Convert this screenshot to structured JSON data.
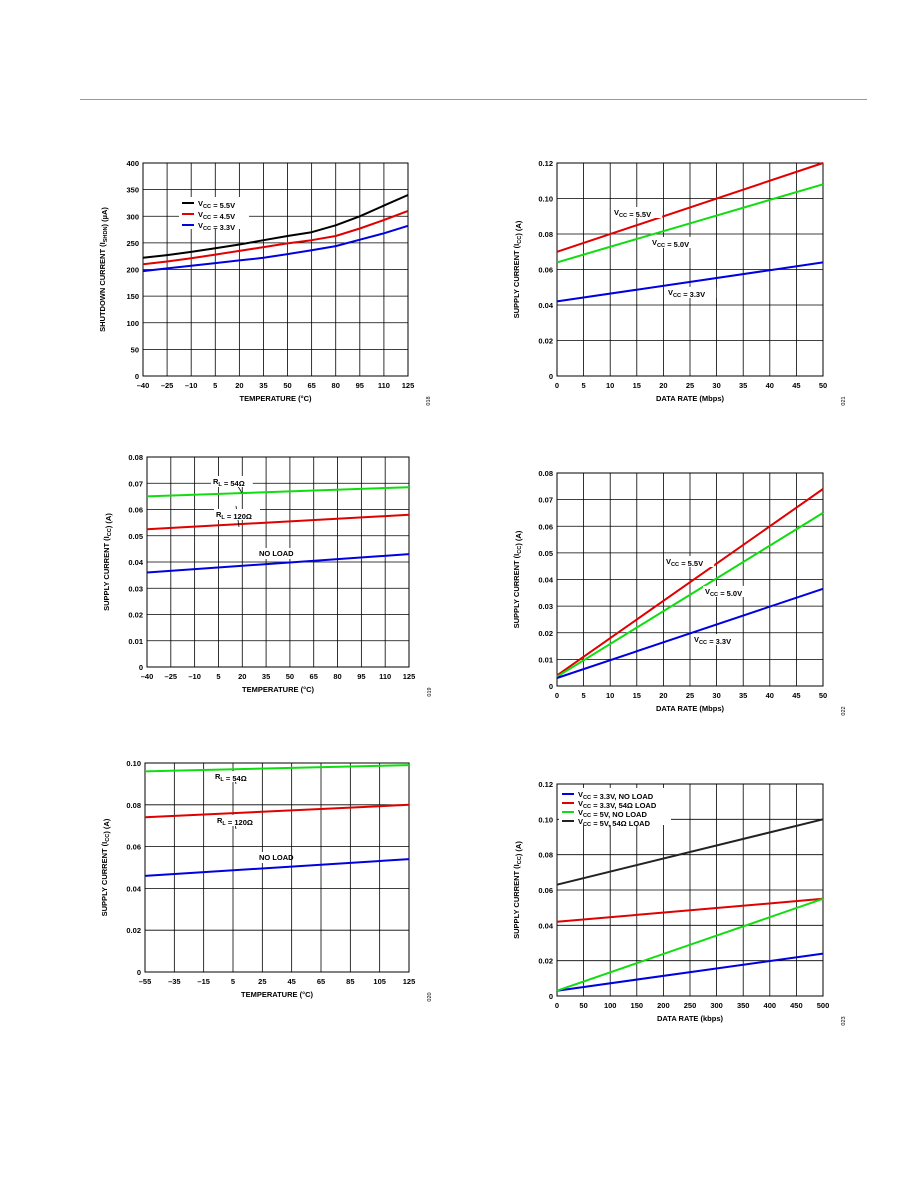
{
  "page": {
    "figure_codes": [
      "018",
      "021",
      "019",
      "022",
      "020",
      "023"
    ]
  },
  "chart_data": [
    {
      "type": "line",
      "xlabel": "TEMPERATURE (°C)",
      "ylabel": "SHUTDOWN CURRENT (I_SHDN) (µA)",
      "x": [
        -40,
        -25,
        -10,
        5,
        20,
        35,
        50,
        65,
        80,
        95,
        110,
        125
      ],
      "xticks": [
        "–40",
        "–25",
        "–10",
        "5",
        "20",
        "35",
        "50",
        "65",
        "80",
        "95",
        "110",
        "125"
      ],
      "yticks": [
        "0",
        "50",
        "100",
        "150",
        "200",
        "250",
        "300",
        "350",
        "400"
      ],
      "xlim": [
        -40,
        125
      ],
      "ylim": [
        0,
        400
      ],
      "legend": "top-left",
      "series": [
        {
          "name": "V_CC = 5.5V",
          "color": "#000000",
          "values": [
            222,
            227,
            233,
            240,
            247,
            255,
            263,
            270,
            283,
            300,
            320,
            340
          ]
        },
        {
          "name": "V_CC = 4.5V",
          "color": "#e00000",
          "values": [
            210,
            215,
            221,
            228,
            235,
            242,
            249,
            255,
            263,
            277,
            293,
            310
          ]
        },
        {
          "name": "V_CC = 3.3V",
          "color": "#0000e0",
          "values": [
            197,
            202,
            207,
            212,
            217,
            222,
            229,
            236,
            244,
            256,
            268,
            282
          ]
        }
      ]
    },
    {
      "type": "line",
      "xlabel": "DATA RATE (Mbps)",
      "ylabel": "SUPPLY CURRENT (I_CC) (A)",
      "x": [
        0,
        50
      ],
      "xticks": [
        "0",
        "5",
        "10",
        "15",
        "20",
        "25",
        "30",
        "35",
        "40",
        "45",
        "50"
      ],
      "yticks": [
        "0",
        "0.02",
        "0.04",
        "0.06",
        "0.08",
        "0.10",
        "0.12"
      ],
      "xlim": [
        0,
        50
      ],
      "ylim": [
        0,
        0.12
      ],
      "series": [
        {
          "name": "V_CC = 5.5V",
          "color": "#e00000",
          "values": [
            0.07,
            0.12
          ]
        },
        {
          "name": "V_CC = 5.0V",
          "color": "#10dd10",
          "values": [
            0.064,
            0.108
          ]
        },
        {
          "name": "V_CC = 3.3V",
          "color": "#0000e0",
          "values": [
            0.042,
            0.064
          ]
        }
      ]
    },
    {
      "type": "line",
      "xlabel": "TEMPERATURE (°C)",
      "ylabel": "SUPPLY CURRENT (I_CC) (A)",
      "x": [
        -40,
        125
      ],
      "xticks": [
        "–40",
        "–25",
        "–10",
        "5",
        "20",
        "35",
        "50",
        "65",
        "80",
        "95",
        "110",
        "125"
      ],
      "yticks": [
        "0",
        "0.01",
        "0.02",
        "0.03",
        "0.04",
        "0.05",
        "0.06",
        "0.07",
        "0.08"
      ],
      "xlim": [
        -40,
        125
      ],
      "ylim": [
        0,
        0.08
      ],
      "series": [
        {
          "name": "R_L = 54Ω",
          "color": "#10dd10",
          "values": [
            0.065,
            0.0685
          ]
        },
        {
          "name": "R_L = 120Ω",
          "color": "#e00000",
          "values": [
            0.0525,
            0.058
          ]
        },
        {
          "name": "NO LOAD",
          "color": "#0000e0",
          "values": [
            0.036,
            0.043
          ]
        }
      ]
    },
    {
      "type": "line",
      "xlabel": "DATA RATE (Mbps)",
      "ylabel": "SUPPLY CURRENT (I_CC) (A)",
      "x": [
        0,
        50
      ],
      "xticks": [
        "0",
        "5",
        "10",
        "15",
        "20",
        "25",
        "30",
        "35",
        "40",
        "45",
        "50"
      ],
      "yticks": [
        "0",
        "0.01",
        "0.02",
        "0.03",
        "0.04",
        "0.05",
        "0.06",
        "0.07",
        "0.08"
      ],
      "xlim": [
        0,
        50
      ],
      "ylim": [
        0,
        0.08
      ],
      "series": [
        {
          "name": "V_CC = 5.5V",
          "color": "#e00000",
          "values": [
            0.004,
            0.074
          ]
        },
        {
          "name": "V_CC = 5.0V",
          "color": "#10dd10",
          "values": [
            0.0035,
            0.065
          ]
        },
        {
          "name": "V_CC = 3.3V",
          "color": "#0000e0",
          "values": [
            0.003,
            0.0365
          ]
        }
      ]
    },
    {
      "type": "line",
      "xlabel": "TEMPERATURE (°C)",
      "ylabel": "SUPPLY CURRENT (I_CC) (A)",
      "x": [
        -55,
        125
      ],
      "xticks": [
        "–55",
        "–35",
        "–15",
        "5",
        "25",
        "45",
        "65",
        "85",
        "105",
        "125"
      ],
      "yticks": [
        "0",
        "0.02",
        "0.04",
        "0.06",
        "0.08",
        "0.10"
      ],
      "xlim": [
        -55,
        125
      ],
      "ylim": [
        0,
        0.1
      ],
      "series": [
        {
          "name": "R_L = 54Ω",
          "color": "#10dd10",
          "values": [
            0.096,
            0.099
          ]
        },
        {
          "name": "R_L = 120Ω",
          "color": "#e00000",
          "values": [
            0.074,
            0.08
          ]
        },
        {
          "name": "NO LOAD",
          "color": "#0000e0",
          "values": [
            0.046,
            0.054
          ]
        }
      ]
    },
    {
      "type": "line",
      "xlabel": "DATA RATE (kbps)",
      "ylabel": "SUPPLY CURRENT (I_CC) (A)",
      "x": [
        0,
        500
      ],
      "xticks": [
        "0",
        "50",
        "100",
        "150",
        "200",
        "250",
        "300",
        "350",
        "400",
        "450",
        "500"
      ],
      "yticks": [
        "0",
        "0.02",
        "0.04",
        "0.06",
        "0.08",
        "0.10",
        "0.12"
      ],
      "xlim": [
        0,
        500
      ],
      "ylim": [
        0,
        0.12
      ],
      "legend": "top-left",
      "series": [
        {
          "name": "V_CC = 3.3V, NO LOAD",
          "color": "#0000e0",
          "values": [
            0.003,
            0.024
          ]
        },
        {
          "name": "V_CC = 3.3V, 54Ω LOAD",
          "color": "#e00000",
          "values": [
            0.042,
            0.055
          ]
        },
        {
          "name": "V_CC = 5V, NO LOAD",
          "color": "#10dd10",
          "values": [
            0.003,
            0.055
          ]
        },
        {
          "name": "V_CC = 5V, 54Ω LOAD",
          "color": "#222222",
          "values": [
            0.063,
            0.1
          ]
        }
      ]
    }
  ]
}
